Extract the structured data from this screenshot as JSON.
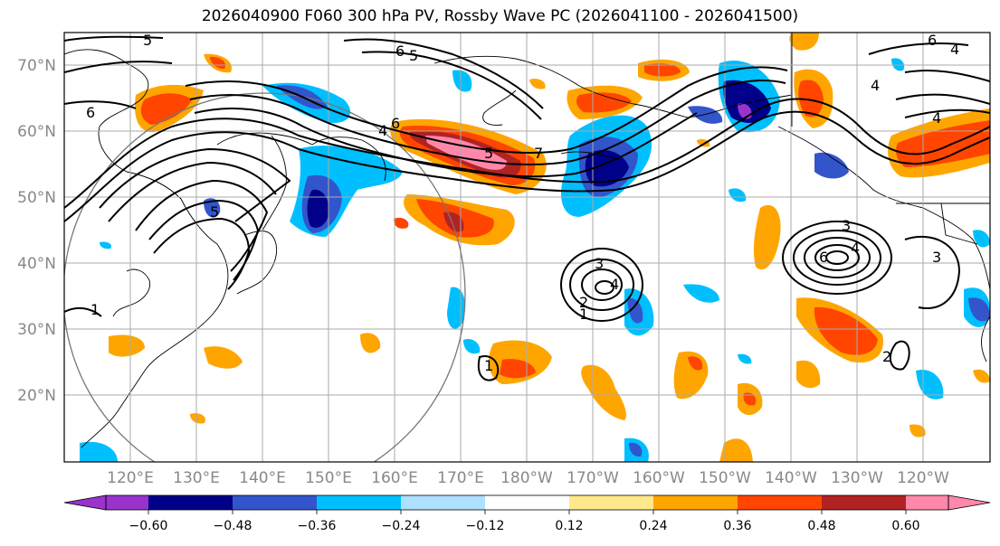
{
  "title": "2026040900 F060 300 hPa PV, Rossby Wave PC (2026041100 - 2026041500)",
  "lat_labels": [
    "70°N",
    "60°N",
    "50°N",
    "40°N",
    "30°N",
    "20°N"
  ],
  "lon_labels": [
    "120°E",
    "130°E",
    "140°E",
    "150°E",
    "160°E",
    "170°E",
    "180°W",
    "170°W",
    "160°W",
    "150°W",
    "140°W",
    "130°W",
    "120°W"
  ],
  "colorbar": {
    "colors": [
      "#9933cc",
      "#000088",
      "#3355cc",
      "#00bfff",
      "#aee0ff",
      "#ffffff",
      "#ffe98a",
      "#ffa500",
      "#ff4500",
      "#b22222",
      "#ff88aa"
    ],
    "tick_labels": [
      "−0.60",
      "−0.48",
      "−0.36",
      "−0.24",
      "−0.12",
      "0.12",
      "0.24",
      "0.36",
      "0.48",
      "0.60"
    ]
  },
  "contour_labels": [
    "5",
    "6",
    "6",
    "5",
    "6",
    "5",
    "1",
    "4",
    "4",
    "5",
    "7",
    "3",
    "3",
    "4",
    "2",
    "1",
    "3",
    "4",
    "6",
    "1",
    "2",
    "4",
    "6",
    "4"
  ],
  "colors": {
    "frame": "#000000",
    "grid": "#aaaaaa",
    "land_outline": "#000000",
    "label_gray": "#888888"
  }
}
